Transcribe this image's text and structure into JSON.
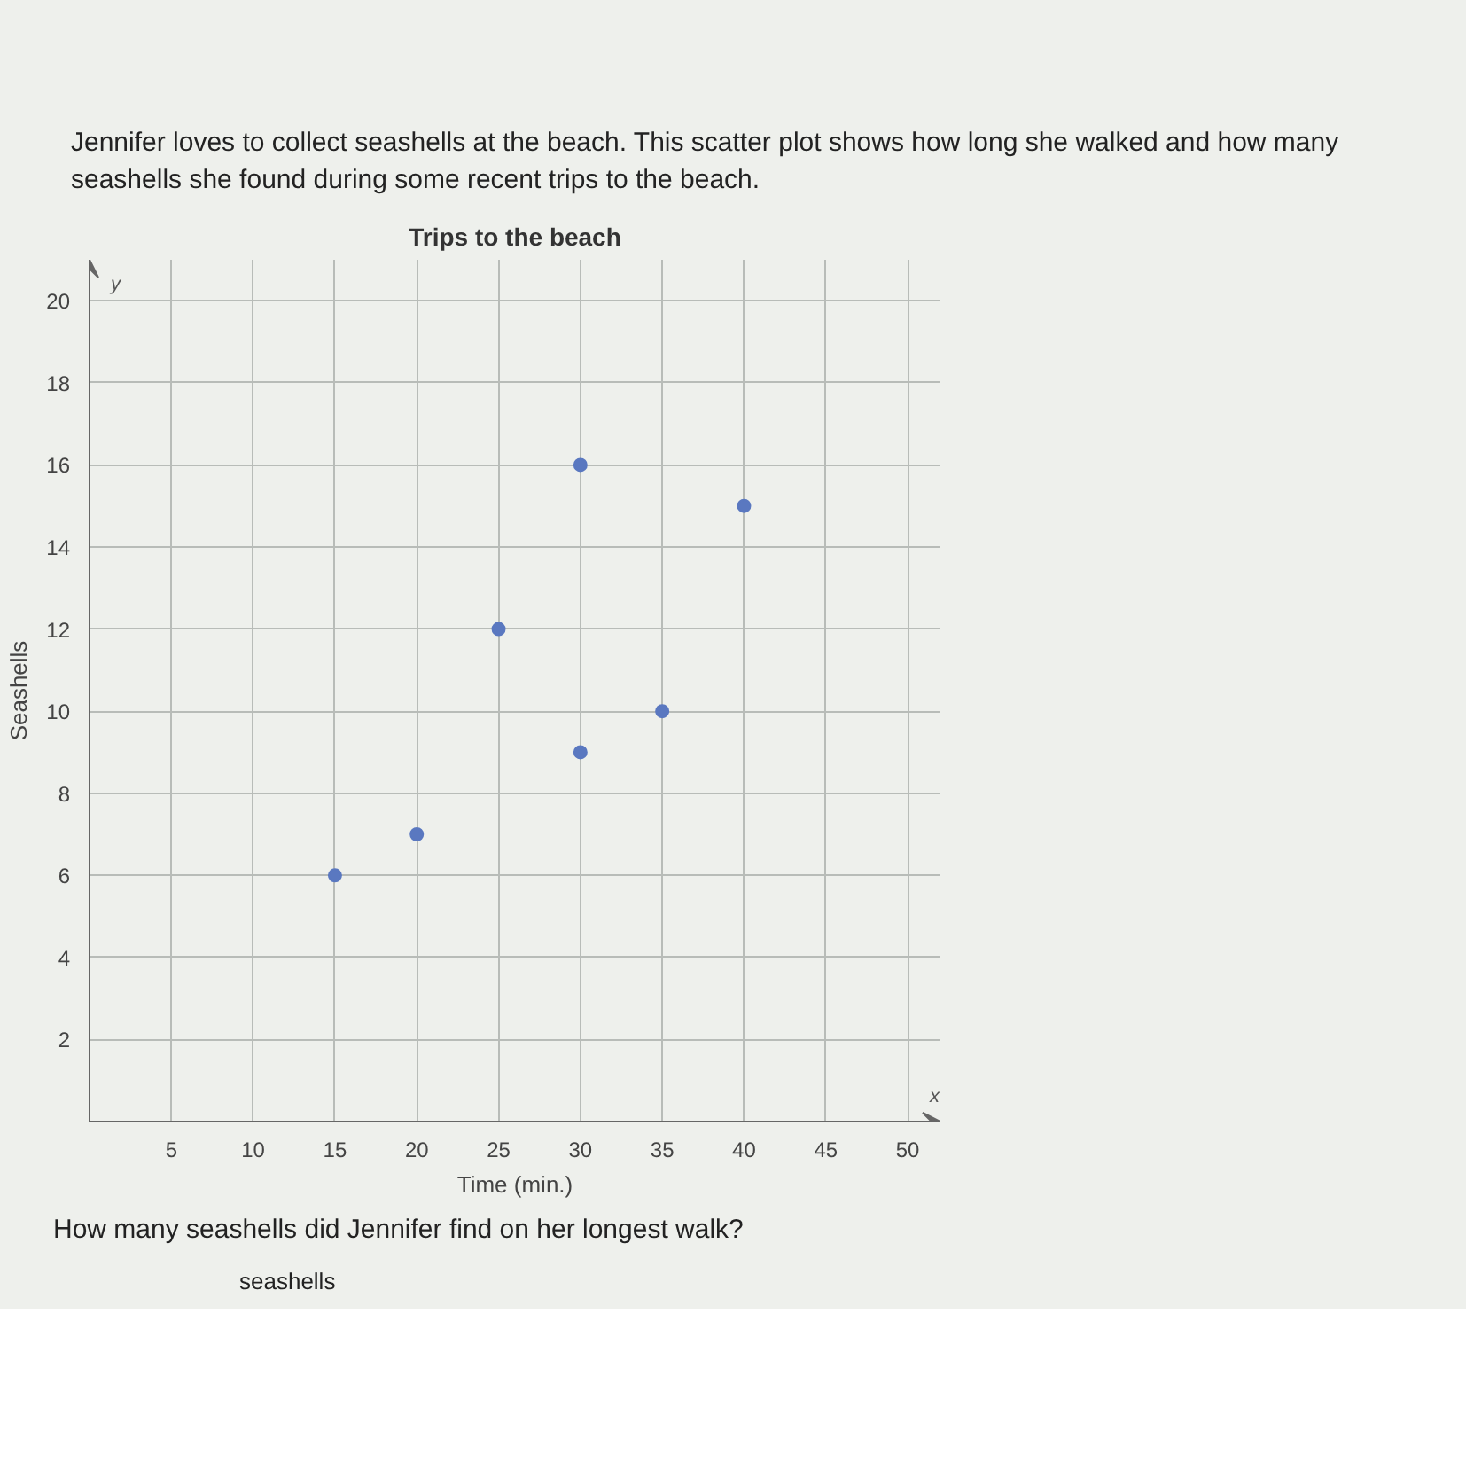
{
  "chart_data": {
    "type": "scatter",
    "title": "Trips to the beach",
    "xlabel": "Time (min.)",
    "ylabel": "Seashells",
    "annotations": [
      "Jennifer loves to collect seashells at the beach. This scatter plot shows how long she walked and how many seashells she found during some recent trips to the beach.",
      "How many seashells did Jennifer find on her longest walk?",
      "seashells",
      "x",
      "y"
    ],
    "x": [
      15,
      20,
      25,
      30,
      30,
      35,
      40
    ],
    "series": [
      {
        "color": "#5a78c0",
        "values": [
          6,
          7,
          12,
          9,
          16,
          10,
          15
        ]
      }
    ],
    "xlim": [
      0,
      52
    ],
    "ylim": [
      0,
      21
    ],
    "xticks": [
      5,
      10,
      15,
      20,
      25,
      30,
      35,
      40,
      45,
      50
    ],
    "yticks": [
      2,
      4,
      6,
      8,
      10,
      12,
      14,
      16,
      18,
      20
    ],
    "grid": true,
    "marker": "circle"
  }
}
